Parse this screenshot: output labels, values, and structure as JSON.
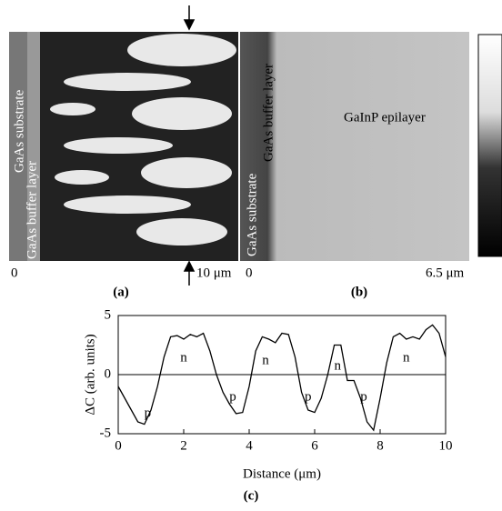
{
  "panels": {
    "a": {
      "labels": [
        "GaAs substrate",
        "GaAs buffer layer"
      ],
      "scale_start": "0",
      "scale_end": "10 μm",
      "caption": "(a)"
    },
    "b": {
      "labels": [
        "GaInP epilayer",
        "GaAs buffer layer",
        "GaAs substrate"
      ],
      "scale_start": "0",
      "scale_end": "6.5 μm",
      "caption": "(b)"
    }
  },
  "chart_data": {
    "type": "line",
    "caption": "(c)",
    "x_label": "Distance (μm)",
    "y_label": "ΔC (arb. units)",
    "x": [
      0,
      0.2,
      0.4,
      0.6,
      0.8,
      1.0,
      1.2,
      1.4,
      1.6,
      1.8,
      2.0,
      2.2,
      2.4,
      2.6,
      2.8,
      3.0,
      3.2,
      3.4,
      3.6,
      3.8,
      4.0,
      4.2,
      4.4,
      4.6,
      4.8,
      5.0,
      5.2,
      5.4,
      5.6,
      5.8,
      6.0,
      6.2,
      6.4,
      6.6,
      6.8,
      7.0,
      7.2,
      7.4,
      7.6,
      7.8,
      8.0,
      8.2,
      8.4,
      8.6,
      8.8,
      9.0,
      9.2,
      9.4,
      9.6,
      9.8,
      10
    ],
    "values": [
      -1,
      -2,
      -3,
      -4,
      -4.2,
      -3,
      -1,
      1.5,
      3.2,
      3.3,
      3,
      3.4,
      3.2,
      3.5,
      2,
      0,
      -1.5,
      -2.5,
      -3.3,
      -3.2,
      -1,
      2,
      3.2,
      3,
      2.7,
      3.5,
      3.4,
      1.5,
      -1.5,
      -3,
      -3.2,
      -2,
      0,
      2.5,
      2.5,
      -0.5,
      -0.5,
      -2,
      -4,
      -4.7,
      -2,
      1,
      3.2,
      3.5,
      3,
      3.2,
      3,
      3.8,
      4.2,
      3.5,
      1.5
    ],
    "color": "#000000",
    "xlim": [
      0,
      10
    ],
    "xticks": [
      0,
      2,
      4,
      6,
      8,
      10
    ],
    "ylim": [
      -5,
      5
    ],
    "yticks": [
      -5,
      0,
      5
    ],
    "zero_line": true,
    "annotations": [
      "p",
      "n",
      "p",
      "n",
      "p",
      "n",
      "p",
      "n"
    ]
  }
}
